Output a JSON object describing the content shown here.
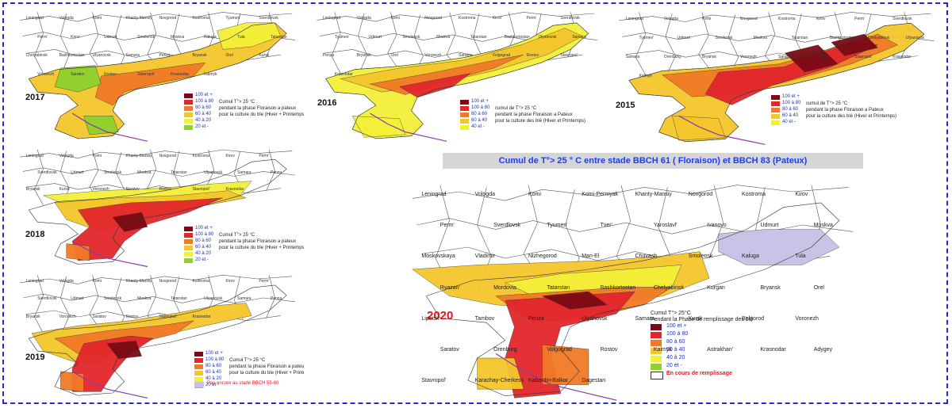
{
  "title": "Cumul de T°> 25 ° C entre stade BBCH 61 ( Floraison)  et BBCH 83 (Pateux)",
  "colors": {
    "c100": "#7a0a14",
    "c80": "#e3262c",
    "c60": "#f27a27",
    "c40": "#f5c62b",
    "c20": "#f3f039",
    "c0": "#8fd12d",
    "pending": "#c8c0e6",
    "border": "#555555",
    "purple": "#8a3aa6"
  },
  "panels": [
    {
      "id": "2017",
      "year": "2017",
      "legend_caption": [
        "Cumul T°> 25 °C",
        "pendant la phase Floraison a pateux",
        "pour la culture du ble (Hiver + Printemps)"
      ],
      "legend_items": [
        "100 et +",
        "100 à 80",
        "80 à 60",
        "60 à 40",
        "40 à 20",
        "20 et -"
      ],
      "regions": [
        "Leningrad",
        "Vologda",
        "Komi",
        "Khanty-Mansiy",
        "Novgorod",
        "Kostroma",
        "Tyumen'",
        "Sverdlovsk",
        "Perm'",
        "Kirov",
        "Udmurt",
        "Smolensk",
        "Moskva",
        "Kaluga",
        "Tula",
        "Tatarstan",
        "Chelyabinsk",
        "Bashkortostan",
        "Ulyanovsk",
        "Samara",
        "Penza",
        "Bryansk",
        "Orel",
        "Kursk",
        "Voronezh",
        "Saratov",
        "Rostov",
        "Stavropol'",
        "Krasnodar",
        "Kalmyk"
      ]
    },
    {
      "id": "2016",
      "year": "2016",
      "legend_caption": [
        "cumul de T°> 25 °C",
        "pendant la phase Floraison a Pateux",
        "pour la culture des blé (Hiver et Printemps)"
      ],
      "legend_items": [
        "100 et +",
        "100 à 80",
        "80 à 60",
        "60 à 40",
        "40 et -"
      ],
      "regions": [
        "Leningrad",
        "Vologda",
        "Komi",
        "Novgorod",
        "Kostroma",
        "Kirov",
        "Perm'",
        "Sverdlovsk",
        "Tyumen'",
        "Udmurt",
        "Smolensk",
        "Moskva",
        "Tatarstan",
        "Bashkortostan",
        "Ulyanovsk",
        "Samara",
        "Penza",
        "Bryansk",
        "Orel",
        "Voronezh",
        "Saratov",
        "Volgograd",
        "Rostov",
        "Stavropol'",
        "Krasnodar"
      ]
    },
    {
      "id": "2015",
      "year": "2015",
      "legend_caption": [
        "cumul de T°> 25 °C",
        "pendant la phase Floraison a Pateux",
        "pour la culture des blé (Hiver et Printemps)"
      ],
      "legend_items": [
        "100 et +",
        "100 à 80",
        "80 à 60",
        "60 à 40",
        "40 et -"
      ],
      "regions": [
        "Leningrad",
        "Vologda",
        "Komi",
        "Novgorod",
        "Kostroma",
        "Kirov",
        "Perm'",
        "Sverdlovsk",
        "Tyumen'",
        "Udmurt",
        "Smolensk",
        "Moskva",
        "Tatarstan",
        "Bashkortostan",
        "Chelyabinsk",
        "Ulyanovsk",
        "Samara",
        "Orenburg",
        "Bryansk",
        "Voronezh",
        "Saratov",
        "Rostov",
        "Stavropol'",
        "Krasnodar",
        "Kalmyk"
      ]
    },
    {
      "id": "2018",
      "year": "2018",
      "legend_caption": [
        "Cumul T°> 25 °C",
        "pendant la phase Floraison a pateux",
        "pour la culture du ble (Hiver + Printemps)"
      ],
      "legend_items": [
        "100 et +",
        "100 à 80",
        "80 à 60",
        "60 à 40",
        "40 à 20",
        "20 et -"
      ],
      "regions": [
        "Leningrad",
        "Vologda",
        "Komi",
        "Khanty-Mansiy",
        "Novgorod",
        "Kostroma",
        "Kirov",
        "Perm'",
        "Sverdlovsk",
        "Udmurt",
        "Smolensk",
        "Moskva",
        "Tatarstan",
        "Ulyanovsk",
        "Samara",
        "Penza",
        "Bryansk",
        "Kursk",
        "Voronezh",
        "Saratov",
        "Rostov",
        "Stavropol'",
        "Krasnodar"
      ]
    },
    {
      "id": "2019",
      "year": "2019",
      "legend_caption": [
        "Cumul T°> 25 °C",
        "pendant la phase Floraison a pateux",
        "pour la culture du ble (Hiver + Printemps)"
      ],
      "legend_items": [
        "100 et +",
        "100 à 80",
        "80 à 60",
        "60 à 40",
        "40 à 20",
        "20 et -"
      ],
      "pending_label": "Pas encore au stade  BBCH 55-60",
      "regions": [
        "Leningrad",
        "Vologda",
        "Komi",
        "Khanty-Mansiy",
        "Novgorod",
        "Kostroma",
        "Kirov",
        "Perm'",
        "Sverdlovsk",
        "Udmurt",
        "Smolensk",
        "Moskva",
        "Tatarstan",
        "Ulyanovsk",
        "Samara",
        "Penza",
        "Bryansk",
        "Voronezh",
        "Saratov",
        "Rostov",
        "Stavropol'",
        "Krasnodar"
      ]
    }
  ],
  "main": {
    "year": "2020",
    "legend_caption": [
      "Cumul T°> 25°C",
      "Pendant la Phase de remplissage des blé"
    ],
    "legend_items": [
      "100 et +",
      "100 à 80",
      "80 à 60",
      "50 à 40",
      "40 à 20",
      "20 et -"
    ],
    "pending_label": "En cours de remplissage",
    "regions": [
      "Leningrad",
      "Vologda",
      "Komi",
      "Komi-Permyak",
      "Khanty-Mansiy",
      "Novgorod",
      "Kostroma",
      "Kirov",
      "Perm'",
      "Sverdlovsk",
      "Tyumen'",
      "Tver'",
      "Yaroslavl'",
      "Ivanovo",
      "Udmurt",
      "Moskva",
      "Moskovskaya",
      "Vladimir",
      "Nizhegorod",
      "Mari-El",
      "Chuvash",
      "Smolensk",
      "Kaluga",
      "Tula",
      "Ryazan'",
      "Mordovia",
      "Tatarstan",
      "Bashkortostan",
      "Chelyabinsk",
      "Kurgan",
      "Bryansk",
      "Orel",
      "Lipetsk",
      "Tambov",
      "Penza",
      "Ulyanovsk",
      "Samara",
      "Kursk",
      "Belgorod",
      "Voronezh",
      "Saratov",
      "Orenburg",
      "Volgograd",
      "Rostov",
      "Kalmyk",
      "Astrakhan'",
      "Krasnodar",
      "Adygey",
      "Stavropol'",
      "Karachay-Cherkess",
      "Kabardin-Balkar",
      "Dagestan"
    ]
  }
}
